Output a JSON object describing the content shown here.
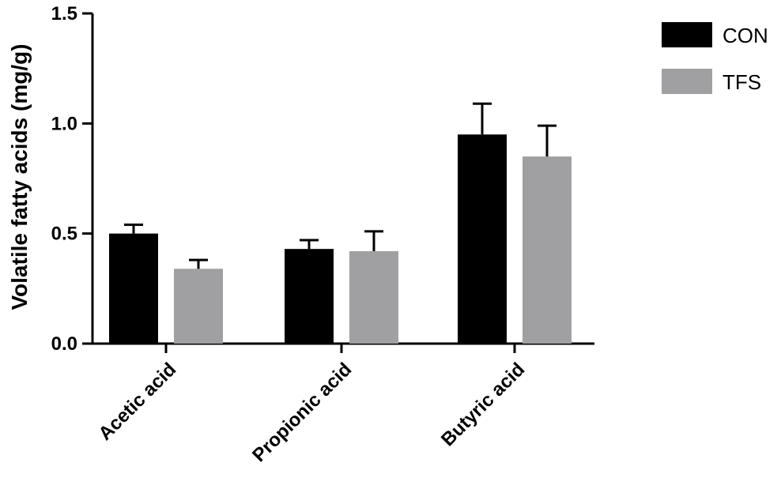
{
  "chart_data": {
    "type": "bar",
    "title": "",
    "xlabel": "",
    "ylabel": "Volatile fatty acids (mg/g)",
    "ylim": [
      0,
      1.5
    ],
    "yticks": [
      "0.0",
      "0.5",
      "1.0",
      "1.5"
    ],
    "ytick_values": [
      0,
      0.5,
      1.0,
      1.5
    ],
    "categories": [
      "Acetic acid",
      "Propionic acid",
      "Butyric acid"
    ],
    "series": [
      {
        "name": "CON",
        "color": "#000000",
        "values": [
          0.5,
          0.43,
          0.95
        ],
        "errors": [
          0.04,
          0.04,
          0.14
        ]
      },
      {
        "name": "TFS",
        "color": "#a0a0a2",
        "values": [
          0.34,
          0.42,
          0.85
        ],
        "errors": [
          0.04,
          0.09,
          0.14
        ]
      }
    ],
    "legend_position": "top-right",
    "grid": false
  }
}
